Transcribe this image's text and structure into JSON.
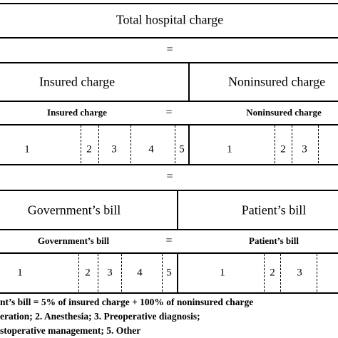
{
  "title": "Total hospital charge",
  "equals": "=",
  "insured_section": {
    "left_header": "Insured charge",
    "right_header": "Noninsured charge",
    "left_sub": "Insured charge",
    "right_sub": "Noninsured charge",
    "left_numbers": [
      "1",
      "2",
      "3",
      "4",
      "5"
    ],
    "right_numbers": [
      "1",
      "2",
      "3"
    ]
  },
  "bill_section": {
    "left_header": "Government’s bill",
    "right_header": "Patient’s bill",
    "left_sub": "Government’s bill",
    "right_sub": "Patient’s bill",
    "left_numbers": [
      "1",
      "2",
      "3",
      "4",
      "5"
    ],
    "right_numbers": [
      "1",
      "2",
      "3"
    ]
  },
  "footnotes": [
    "nt’s bill = 5% of insured charge + 100% of noninsured charge",
    "eration; 2. Anesthesia; 3. Preoperative diagnosis;",
    "stoperative management; 5. Other"
  ]
}
